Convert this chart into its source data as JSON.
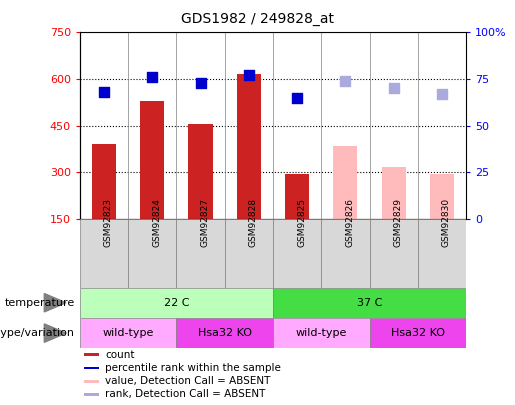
{
  "title": "GDS1982 / 249828_at",
  "samples": [
    "GSM92823",
    "GSM92824",
    "GSM92827",
    "GSM92828",
    "GSM92825",
    "GSM92826",
    "GSM92829",
    "GSM92830"
  ],
  "count_values": [
    390,
    530,
    455,
    615,
    295,
    null,
    null,
    null
  ],
  "count_absent_values": [
    null,
    null,
    null,
    null,
    null,
    385,
    315,
    295
  ],
  "percentile_values": [
    68,
    76,
    73,
    77,
    65,
    null,
    null,
    null
  ],
  "percentile_absent_values": [
    null,
    null,
    null,
    null,
    null,
    74,
    70,
    67
  ],
  "bar_color_present": "#cc2222",
  "bar_color_absent": "#ffbbbb",
  "dot_color_present": "#0000cc",
  "dot_color_absent": "#aaaadd",
  "ylim_left": [
    150,
    750
  ],
  "ylim_right": [
    0,
    100
  ],
  "left_ticks": [
    150,
    300,
    450,
    600,
    750
  ],
  "right_ticks": [
    0,
    25,
    50,
    75,
    100
  ],
  "right_tick_labels": [
    "0",
    "25",
    "50",
    "75",
    "100%"
  ],
  "temperature_groups": [
    {
      "label": "22 C",
      "start": 0,
      "end": 4,
      "color": "#bbffbb"
    },
    {
      "label": "37 C",
      "start": 4,
      "end": 8,
      "color": "#44dd44"
    }
  ],
  "genotype_groups": [
    {
      "label": "wild-type",
      "start": 0,
      "end": 2,
      "color": "#ffaaff"
    },
    {
      "label": "Hsa32 KO",
      "start": 2,
      "end": 4,
      "color": "#ee44ee"
    },
    {
      "label": "wild-type",
      "start": 4,
      "end": 6,
      "color": "#ffaaff"
    },
    {
      "label": "Hsa32 KO",
      "start": 6,
      "end": 8,
      "color": "#ee44ee"
    }
  ],
  "legend_items": [
    {
      "label": "count",
      "color": "#cc2222"
    },
    {
      "label": "percentile rank within the sample",
      "color": "#0000cc"
    },
    {
      "label": "value, Detection Call = ABSENT",
      "color": "#ffbbbb"
    },
    {
      "label": "rank, Detection Call = ABSENT",
      "color": "#aaaadd"
    }
  ],
  "background_color": "#ffffff",
  "plot_area_bg": "#ffffff",
  "bar_width": 0.5,
  "dot_size": 50
}
